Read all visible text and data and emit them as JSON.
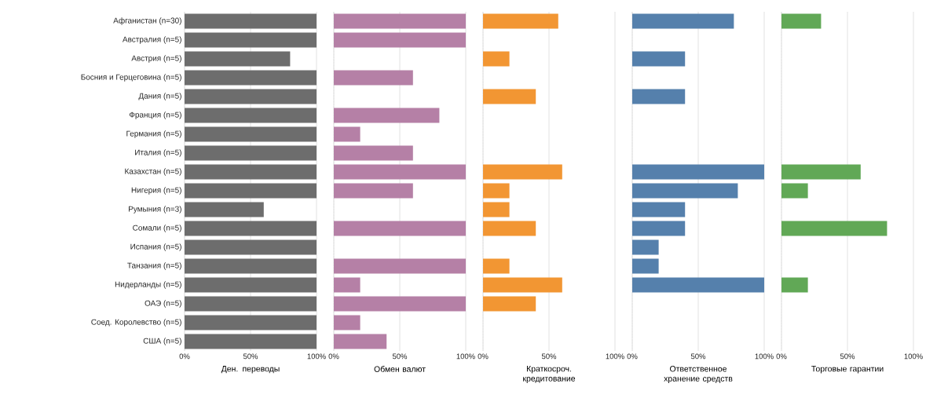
{
  "chart_data": [
    {
      "type": "bar",
      "orientation": "horizontal",
      "xlabel": "Ден. переводы",
      "color": "#6d6d6d",
      "grid": "x",
      "categories": [
        "Афганистан (n=30)",
        "Австралия (n=5)",
        "Австрия (n=5)",
        "Босния и Герцеговина (n=5)",
        "Дания (n=5)",
        "Франция (n=5)",
        "Германия (n=5)",
        "Италия (n=5)",
        "Казахстан (n=5)",
        "Нигерия (n=5)",
        "Румыния (n=3)",
        "Сомали (n=5)",
        "Испания (n=5)",
        "Танзания (n=5)",
        "Нидерланды (n=5)",
        "ОАЭ (n=5)",
        "Соед. Королевство (n=5)",
        "США (n=5)"
      ],
      "values": [
        100,
        100,
        80,
        100,
        100,
        100,
        100,
        100,
        100,
        100,
        60,
        100,
        100,
        100,
        100,
        100,
        100,
        100
      ],
      "xlim": [
        0,
        100
      ],
      "xticks": [
        {
          "value": 0,
          "label": "0%"
        },
        {
          "value": 50,
          "label": "50%"
        },
        {
          "value": 100,
          "label": "100%"
        }
      ]
    },
    {
      "type": "bar",
      "orientation": "horizontal",
      "xlabel": "Обмен валют",
      "color": "#b580a6",
      "grid": "x",
      "tick_labels": "x",
      "categories": [
        null,
        null,
        null,
        null,
        null,
        null,
        null,
        null,
        null,
        null,
        null,
        null,
        null,
        null,
        null,
        null,
        null,
        null
      ],
      "values": [
        100,
        100,
        null,
        60,
        null,
        80,
        20,
        60,
        100,
        60,
        null,
        100,
        null,
        100,
        20,
        100,
        20,
        40
      ],
      "xlim": [
        0,
        100
      ],
      "xticks": [
        {
          "value": 0,
          "label": "0%"
        },
        {
          "value": 50,
          "label": "50%"
        },
        {
          "value": 100,
          "label": "100%"
        }
      ]
    },
    {
      "type": "bar",
      "orientation": "horizontal",
      "xlabel": "Краткосроч. кредитование",
      "color": "#f29633",
      "grid": "x",
      "tick_labels": "x",
      "categories": [
        null,
        null,
        null,
        null,
        null,
        null,
        null,
        null,
        null,
        null,
        null,
        null,
        null,
        null,
        null,
        null,
        null,
        null
      ],
      "values": [
        57,
        null,
        20,
        null,
        40,
        null,
        null,
        null,
        60,
        20,
        20,
        40,
        null,
        20,
        60,
        40,
        null,
        null
      ],
      "xlim": [
        0,
        100
      ],
      "xticks": [
        {
          "value": 0,
          "label": "0%"
        },
        {
          "value": 50,
          "label": "50%"
        },
        {
          "value": 100,
          "label": "100%"
        }
      ]
    },
    {
      "type": "bar",
      "orientation": "horizontal",
      "xlabel": "Ответственное хранение средств",
      "color": "#5580ac",
      "grid": "x",
      "tick_labels": "x",
      "categories": [
        null,
        null,
        null,
        null,
        null,
        null,
        null,
        null,
        null,
        null,
        null,
        null,
        null,
        null,
        null,
        null,
        null,
        null
      ],
      "values": [
        77,
        null,
        40,
        null,
        40,
        null,
        null,
        null,
        100,
        80,
        40,
        40,
        20,
        20,
        100,
        null,
        null,
        null
      ],
      "xlim": [
        0,
        100
      ],
      "xticks": [
        {
          "value": 0,
          "label": "0%"
        },
        {
          "value": 50,
          "label": "50%"
        },
        {
          "value": 100,
          "label": "100%"
        }
      ]
    },
    {
      "type": "bar",
      "orientation": "horizontal",
      "xlabel": "Торговые гарантии",
      "color": "#61a856",
      "grid": "x",
      "tick_labels": "x",
      "categories": [
        null,
        null,
        null,
        null,
        null,
        null,
        null,
        null,
        null,
        null,
        null,
        null,
        null,
        null,
        null,
        null,
        null,
        null
      ],
      "values": [
        30,
        null,
        null,
        null,
        null,
        null,
        null,
        null,
        60,
        20,
        null,
        80,
        null,
        null,
        20,
        null,
        null,
        null
      ],
      "xlim": [
        0,
        100
      ],
      "xticks": [
        {
          "value": 0,
          "label": "0%"
        },
        {
          "value": 50,
          "label": "50%"
        },
        {
          "value": 100,
          "label": "100%"
        }
      ]
    }
  ]
}
